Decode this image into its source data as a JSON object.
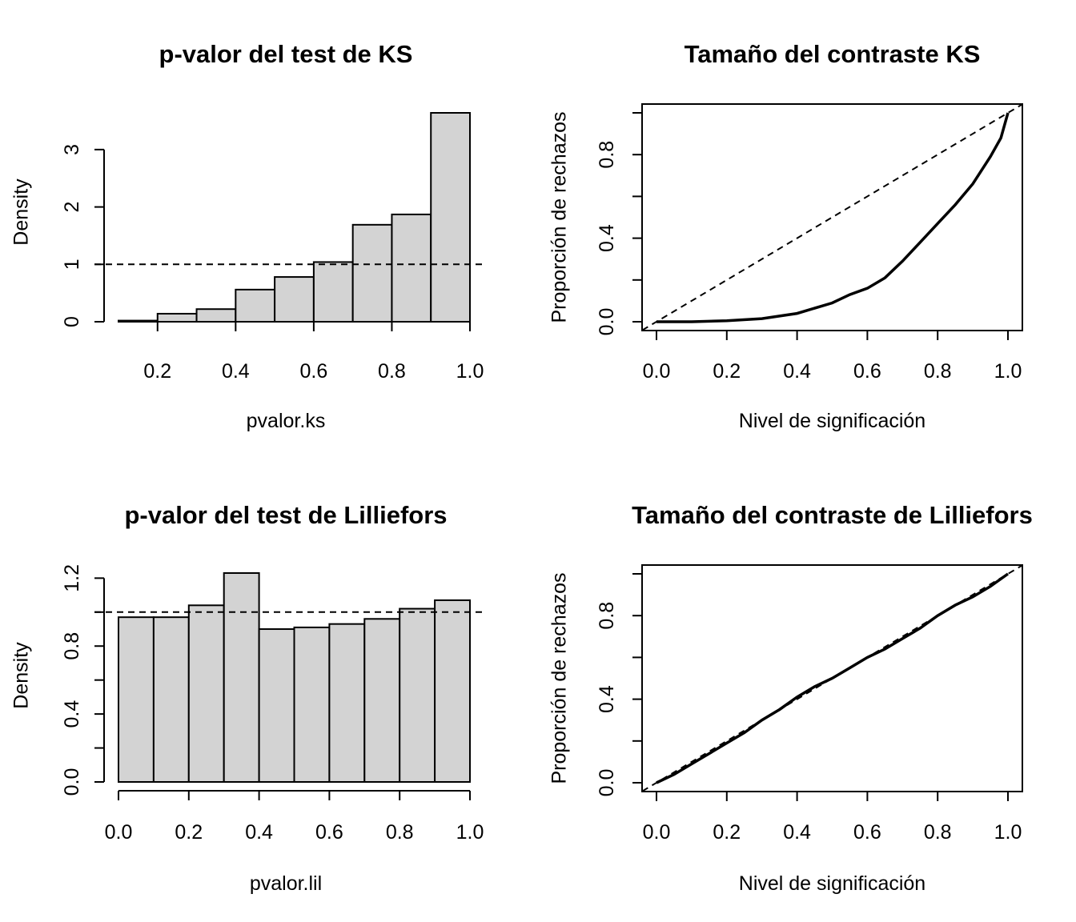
{
  "chart_data": [
    {
      "type": "bar",
      "title": "p-valor del test de KS",
      "xlabel": "pvalor.ks",
      "ylabel": "Density",
      "bin_edges": [
        0.1,
        0.2,
        0.3,
        0.4,
        0.5,
        0.6,
        0.7,
        0.8,
        0.9,
        1.0
      ],
      "values": [
        0.02,
        0.14,
        0.22,
        0.56,
        0.78,
        1.04,
        1.69,
        1.87,
        3.64
      ],
      "xticks": [
        "0.2",
        "0.4",
        "0.6",
        "0.8",
        "1.0"
      ],
      "yticks": [
        "0",
        "1",
        "2",
        "3"
      ],
      "xlim": [
        0.1,
        1.0
      ],
      "ylim": [
        0,
        3.64
      ],
      "reference_line": {
        "y": 1,
        "style": "dashed"
      },
      "grid": false
    },
    {
      "type": "line",
      "title": "Tamaño del contraste KS",
      "xlabel": "Nivel de significación",
      "ylabel": "Proporción de rechazos",
      "x": [
        0,
        0.1,
        0.2,
        0.3,
        0.4,
        0.5,
        0.55,
        0.6,
        0.65,
        0.7,
        0.75,
        0.8,
        0.85,
        0.9,
        0.95,
        0.98,
        1.0
      ],
      "y": [
        0,
        0.0,
        0.005,
        0.015,
        0.04,
        0.09,
        0.13,
        0.16,
        0.21,
        0.29,
        0.38,
        0.47,
        0.56,
        0.66,
        0.79,
        0.88,
        1.0
      ],
      "xticks": [
        "0.0",
        "0.2",
        "0.4",
        "0.6",
        "0.8",
        "1.0"
      ],
      "yticks": [
        "0.0",
        "0.4",
        "0.8"
      ],
      "xlim": [
        0,
        1
      ],
      "ylim": [
        0,
        1
      ],
      "reference_line": {
        "from": [
          0,
          0
        ],
        "to": [
          1,
          1
        ],
        "style": "dashed"
      },
      "grid": false
    },
    {
      "type": "bar",
      "title": "p-valor del test de Lilliefors",
      "xlabel": "pvalor.lil",
      "ylabel": "Density",
      "bin_edges": [
        0.0,
        0.1,
        0.2,
        0.3,
        0.4,
        0.5,
        0.6,
        0.7,
        0.8,
        0.9,
        1.0
      ],
      "values": [
        0.97,
        0.97,
        1.04,
        1.23,
        0.9,
        0.91,
        0.93,
        0.96,
        1.02,
        1.07
      ],
      "xticks": [
        "0.0",
        "0.2",
        "0.4",
        "0.6",
        "0.8",
        "1.0"
      ],
      "yticks": [
        "0.0",
        "0.4",
        "0.8",
        "1.2"
      ],
      "xlim": [
        0,
        1
      ],
      "ylim": [
        0,
        1.23
      ],
      "reference_line": {
        "y": 1,
        "style": "dashed"
      },
      "grid": false
    },
    {
      "type": "line",
      "title": "Tamaño del contraste de Lilliefors",
      "xlabel": "Nivel de significación",
      "ylabel": "Proporción de rechazos",
      "x": [
        0,
        0.05,
        0.1,
        0.15,
        0.2,
        0.25,
        0.3,
        0.35,
        0.4,
        0.45,
        0.5,
        0.55,
        0.6,
        0.65,
        0.7,
        0.75,
        0.8,
        0.85,
        0.9,
        0.95,
        1.0
      ],
      "y": [
        0,
        0.04,
        0.09,
        0.14,
        0.19,
        0.24,
        0.3,
        0.35,
        0.41,
        0.46,
        0.5,
        0.55,
        0.6,
        0.64,
        0.69,
        0.74,
        0.8,
        0.85,
        0.89,
        0.94,
        1.0
      ],
      "xticks": [
        "0.0",
        "0.2",
        "0.4",
        "0.6",
        "0.8",
        "1.0"
      ],
      "yticks": [
        "0.0",
        "0.4",
        "0.8"
      ],
      "xlim": [
        0,
        1
      ],
      "ylim": [
        0,
        1
      ],
      "reference_line": {
        "from": [
          0,
          0
        ],
        "to": [
          1,
          1
        ],
        "style": "dashed"
      },
      "grid": false
    }
  ]
}
